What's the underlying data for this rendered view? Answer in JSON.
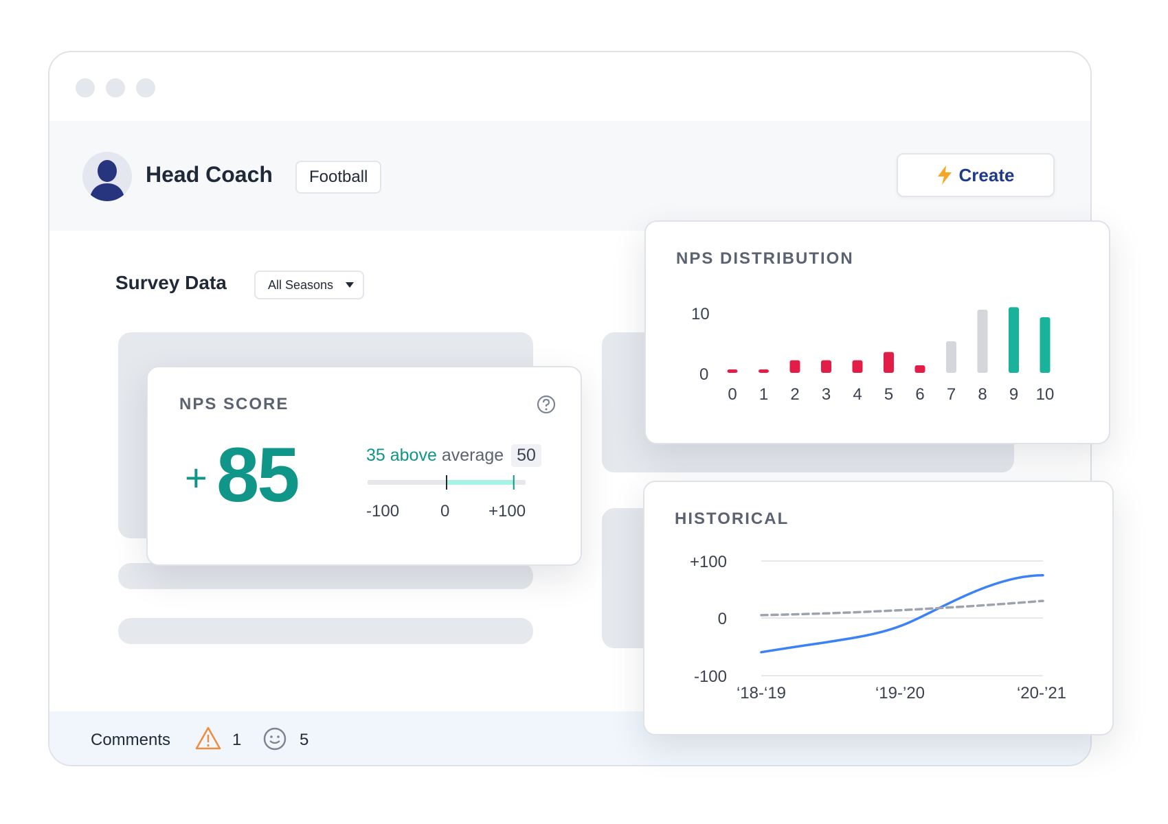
{
  "header": {
    "coach_name": "Head Coach",
    "sport_tag": "Football",
    "create_label": "Create",
    "accent": "#1e3a8a",
    "bolt_color": "#f5a623"
  },
  "survey": {
    "title": "Survey Data",
    "season_select": "All Seasons"
  },
  "nps_score": {
    "title": "NPS SCORE",
    "sign": "+",
    "value": "85",
    "diff_text": "35 above",
    "average_label": "average",
    "average_value": "50",
    "scale_min": "-100",
    "scale_mid": "0",
    "scale_max": "+100",
    "average": 50,
    "score": 85,
    "color": "#0f9688"
  },
  "chart_data": [
    {
      "type": "bar",
      "title": "NPS DISTRIBUTION",
      "categories": [
        "0",
        "1",
        "2",
        "3",
        "4",
        "5",
        "6",
        "7",
        "8",
        "9",
        "10"
      ],
      "values": [
        0.5,
        0.5,
        2,
        2,
        2,
        3.3,
        1.2,
        5,
        10,
        10.4,
        8.8
      ],
      "colors": [
        "#e11d48",
        "#e11d48",
        "#e11d48",
        "#e11d48",
        "#e11d48",
        "#e11d48",
        "#e11d48",
        "#d4d6db",
        "#d4d6db",
        "#19b39b",
        "#19b39b"
      ],
      "y_ticks": [
        "10",
        "0"
      ],
      "ylim": [
        0,
        10.5
      ]
    },
    {
      "type": "line",
      "title": "HISTORICAL",
      "x": [
        "‘18-‘19",
        "‘19-’20",
        "‘20-’21"
      ],
      "y_ticks": [
        "+100",
        "0",
        "-100"
      ],
      "ylim": [
        -100,
        100
      ],
      "series": [
        {
          "style": "solid",
          "color": "#3b82f6",
          "values": [
            -60,
            -20,
            75
          ]
        },
        {
          "style": "dashed",
          "color": "#9ca3af",
          "values": [
            5,
            15,
            30
          ]
        }
      ]
    }
  ],
  "comments": {
    "label": "Comments",
    "warning_count": "1",
    "smile_count": "5"
  }
}
